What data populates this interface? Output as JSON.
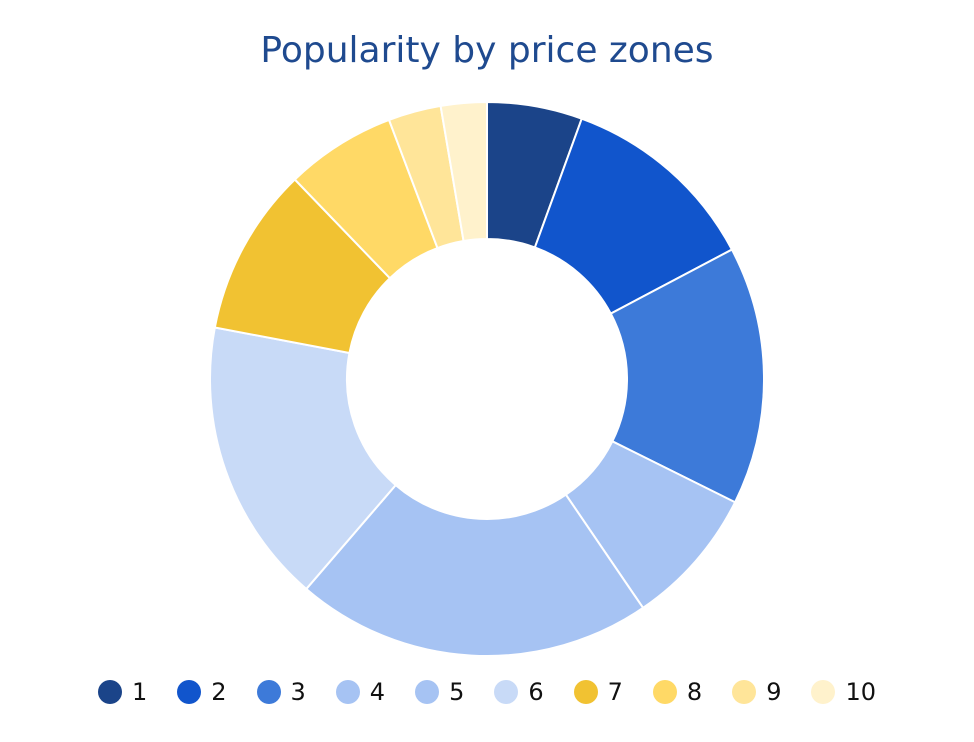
{
  "chart_data": {
    "type": "pie",
    "title": "Popularity by price zones",
    "hole": true,
    "legend_position": "bottom",
    "categories": [
      "1",
      "2",
      "3",
      "4",
      "5",
      "6",
      "7",
      "8",
      "9",
      "10"
    ],
    "values": [
      5.6,
      11.8,
      15.2,
      8.2,
      21.0,
      16.8,
      9.9,
      6.5,
      3.1,
      2.7
    ],
    "colors": [
      "#1b4489",
      "#1155cc",
      "#3d7ad9",
      "#a6c3f3",
      "#a6c3f3",
      "#c8daf7",
      "#f1c232",
      "#ffd966",
      "#ffe599",
      "#fff2cc"
    ]
  }
}
